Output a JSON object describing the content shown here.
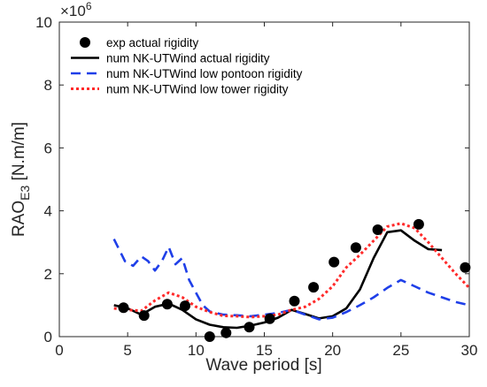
{
  "chart_data": {
    "type": "line",
    "xlabel": "Wave period [s]",
    "ylabel_main": "RAO",
    "ylabel_sub": "E3",
    "ylabel_unit": " [N.m/m]",
    "exponent_base": "×10",
    "exponent_power": "6",
    "xlim": [
      0,
      30
    ],
    "ylim": [
      0,
      10
    ],
    "x_ticks": [
      0,
      5,
      10,
      15,
      20,
      25,
      30
    ],
    "y_ticks": [
      0,
      2,
      4,
      6,
      8,
      10
    ],
    "legend_position": "top-left",
    "grid": false,
    "series": [
      {
        "name": "exp actual rigidity",
        "kind": "markers",
        "color": "#000000",
        "x": [
          4.7,
          6.2,
          7.9,
          9.2,
          11.0,
          12.2,
          13.9,
          15.4,
          17.2,
          18.6,
          20.1,
          21.7,
          23.3,
          26.3,
          29.7
        ],
        "y": [
          0.92,
          0.67,
          1.03,
          0.98,
          0.0,
          0.12,
          0.3,
          0.57,
          1.13,
          1.57,
          2.37,
          2.83,
          3.4,
          3.57,
          2.2
        ]
      },
      {
        "name": "num NK-UTWind actual rigidity",
        "kind": "line",
        "style": "solid",
        "color": "#000000",
        "x": [
          4.0,
          5.0,
          6.0,
          7.0,
          8.0,
          9.0,
          10.0,
          11.0,
          12.0,
          13.0,
          14.0,
          15.0,
          16.0,
          17.0,
          18.0,
          19.0,
          20.0,
          21.0,
          22.0,
          23.0,
          24.0,
          25.0,
          26.0,
          27.0,
          28.0
        ],
        "y": [
          1.0,
          0.9,
          0.7,
          0.95,
          1.05,
          0.85,
          0.55,
          0.38,
          0.3,
          0.28,
          0.35,
          0.45,
          0.6,
          0.85,
          0.72,
          0.58,
          0.65,
          0.9,
          1.5,
          2.5,
          3.32,
          3.38,
          3.05,
          2.78,
          2.75
        ]
      },
      {
        "name": "num NK-UTWind low pontoon rigidity",
        "kind": "line",
        "style": "dashed",
        "color": "#1f3fe8",
        "x": [
          4.0,
          4.8,
          5.4,
          6.0,
          6.5,
          7.0,
          7.5,
          8.0,
          8.5,
          9.0,
          9.5,
          10.0,
          10.5,
          11.0,
          12.0,
          13.0,
          14.0,
          15.0,
          16.0,
          17.0,
          18.0,
          19.0,
          20.0,
          21.0,
          22.0,
          23.0,
          24.0,
          25.0,
          26.0,
          27.0,
          28.0,
          29.0,
          30.0
        ],
        "y": [
          3.1,
          2.4,
          2.25,
          2.55,
          2.4,
          2.1,
          2.4,
          2.85,
          2.3,
          2.5,
          1.8,
          1.4,
          1.0,
          0.8,
          0.7,
          0.68,
          0.65,
          0.7,
          0.75,
          0.85,
          0.7,
          0.55,
          0.6,
          0.78,
          1.0,
          1.25,
          1.55,
          1.8,
          1.6,
          1.4,
          1.25,
          1.1,
          1.0
        ]
      },
      {
        "name": "num NK-UTWind low tower rigidity",
        "kind": "line",
        "style": "dotted",
        "color": "#ff2a2a",
        "x": [
          4.0,
          5.0,
          6.0,
          7.0,
          8.0,
          9.0,
          10.0,
          11.0,
          12.0,
          13.0,
          14.0,
          15.0,
          16.0,
          17.0,
          18.0,
          19.0,
          20.0,
          21.0,
          22.0,
          23.0,
          24.0,
          25.0,
          26.0,
          27.0,
          28.0,
          29.0,
          30.0
        ],
        "y": [
          0.9,
          0.85,
          0.82,
          1.15,
          1.4,
          1.25,
          0.95,
          0.78,
          0.66,
          0.65,
          0.62,
          0.65,
          0.7,
          0.85,
          0.95,
          1.2,
          1.6,
          2.2,
          2.6,
          3.05,
          3.5,
          3.6,
          3.45,
          3.0,
          2.5,
          2.0,
          1.55
        ]
      }
    ]
  }
}
